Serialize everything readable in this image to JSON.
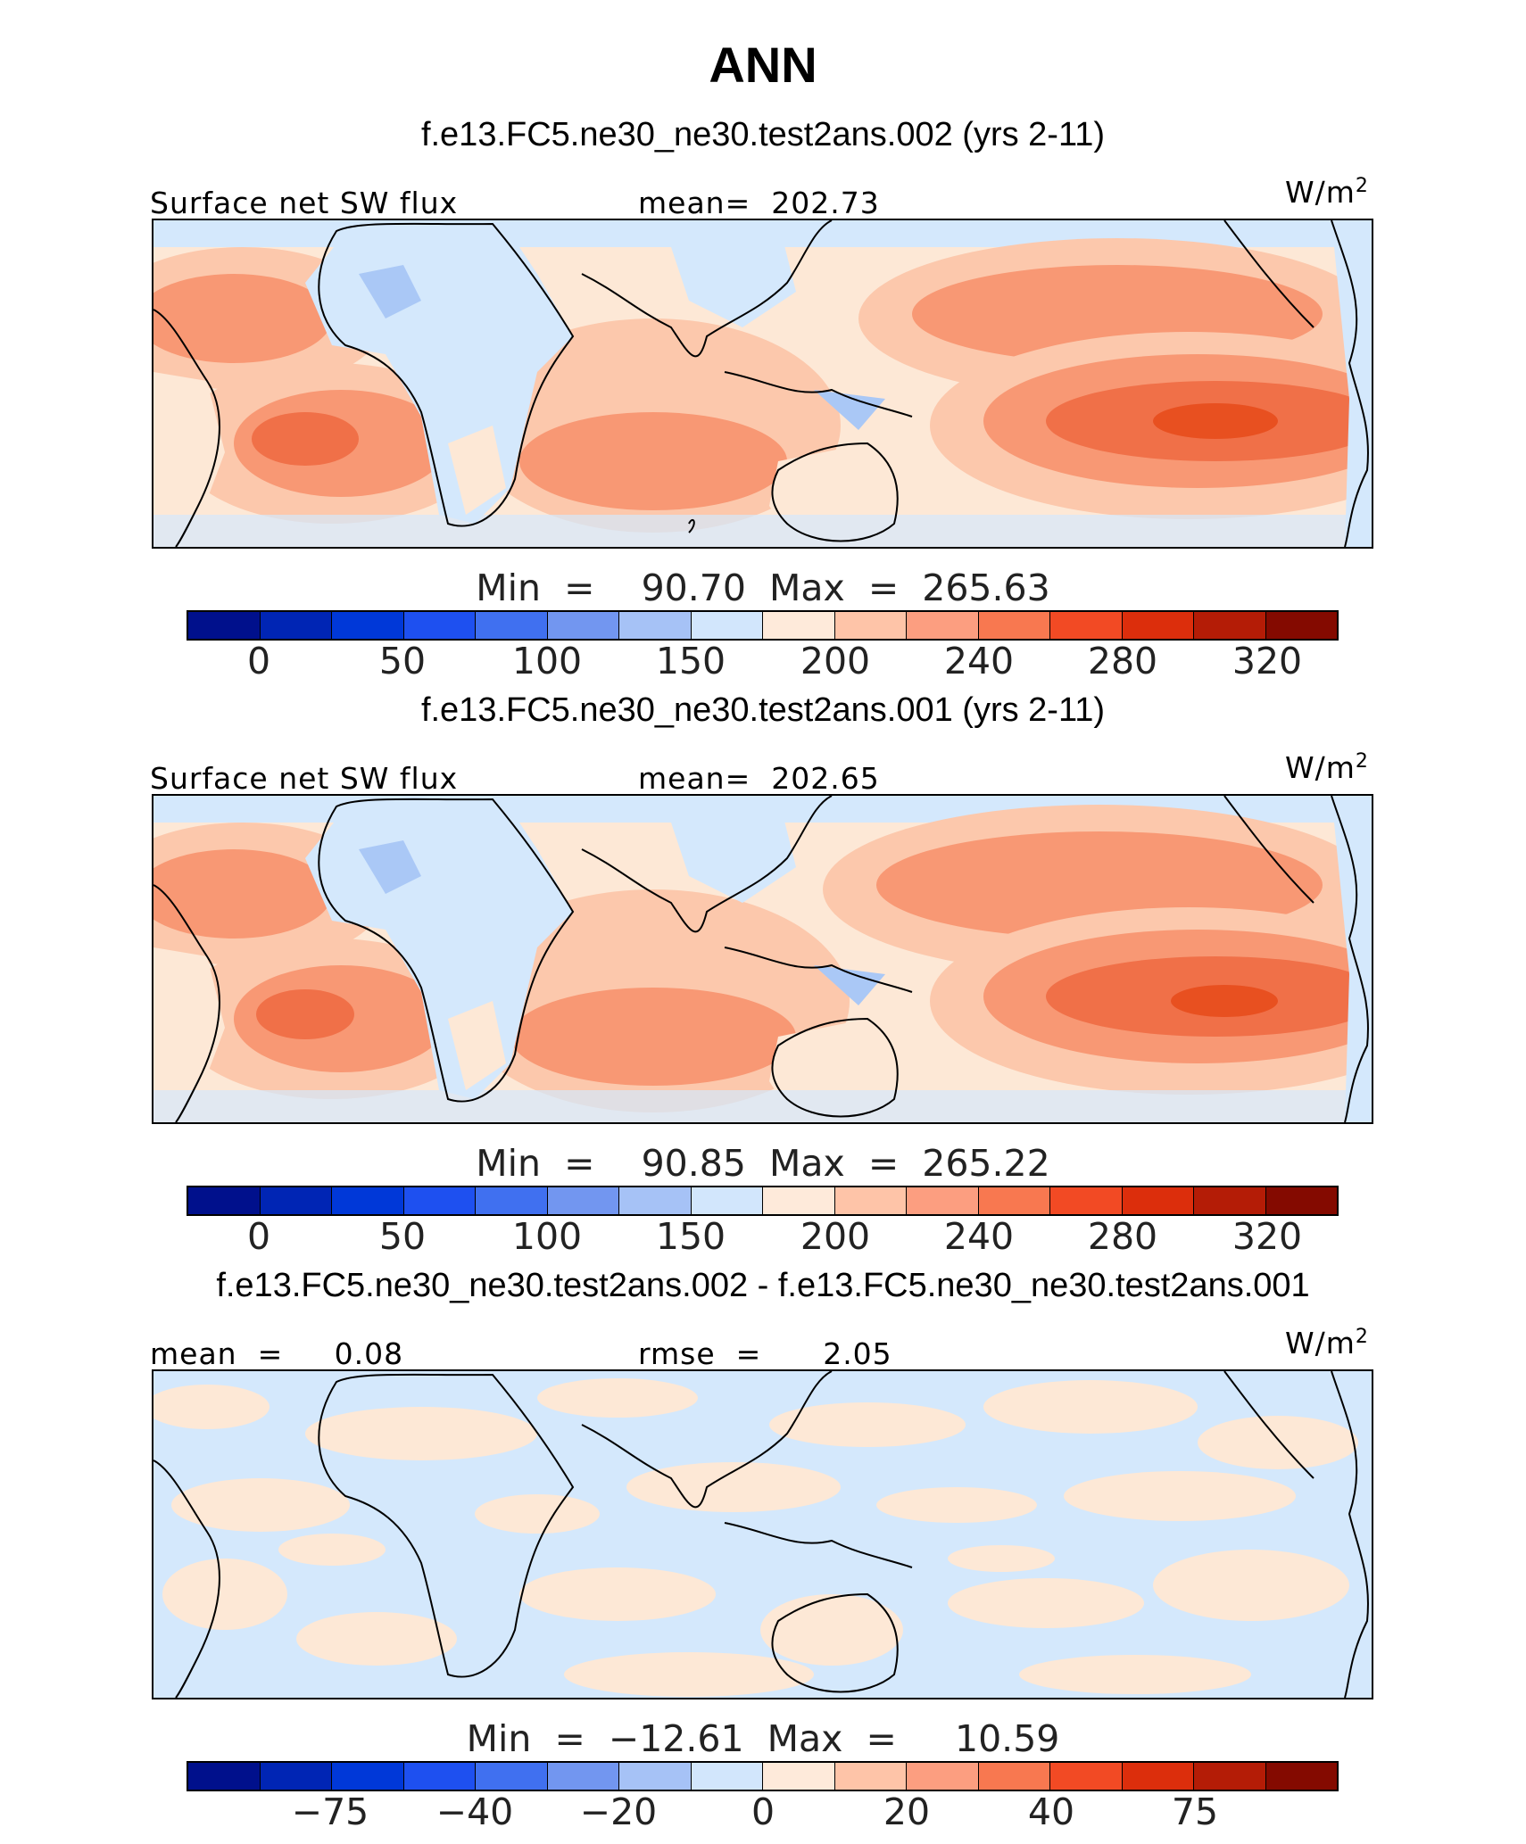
{
  "title": "ANN",
  "colors": {
    "palette": [
      "#00108c",
      "#0025b4",
      "#0038d8",
      "#1e50f0",
      "#4070f0",
      "#7296f0",
      "#a6c2f6",
      "#d2e6fc",
      "#feeada",
      "#fec4a8",
      "#fc9e80",
      "#f87850",
      "#f24a24",
      "#dc2e0c",
      "#b41c06",
      "#840a00"
    ],
    "ocean_warm": "#fcc8ac",
    "ocean_hot": "#f89874",
    "ocean_peak": "#f07048",
    "ocean_core": "#e85020",
    "neutral": "#fde8d6",
    "cool": "#d4e8fc",
    "cooler": "#aac8f6"
  },
  "panels": [
    {
      "run_title": "f.e13.FC5.ne30_ne30.test2ans.002 (yrs 2-11)",
      "left_label": "Surface net SW flux",
      "center_label": "mean=  202.73",
      "units": "W/m",
      "units_sup": "2",
      "stats": "Min  =    90.70  Max  =  265.63",
      "ticks": [
        "0",
        "50",
        "100",
        "150",
        "200",
        "240",
        "280",
        "320"
      ]
    },
    {
      "run_title": "f.e13.FC5.ne30_ne30.test2ans.001 (yrs 2-11)",
      "left_label": "Surface net SW flux",
      "center_label": "mean=  202.65",
      "units": "W/m",
      "units_sup": "2",
      "stats": "Min  =    90.85  Max  =  265.22",
      "ticks": [
        "0",
        "50",
        "100",
        "150",
        "200",
        "240",
        "280",
        "320"
      ]
    },
    {
      "run_title": "f.e13.FC5.ne30_ne30.test2ans.002 - f.e13.FC5.ne30_ne30.test2ans.001",
      "left_label": "mean  =     0.08",
      "center_label": "rmse  =      2.05",
      "units": "W/m",
      "units_sup": "2",
      "stats": "Min  =  −12.61  Max  =     10.59",
      "ticks": [
        "−75",
        "−40",
        "−20",
        "0",
        "20",
        "40",
        "75"
      ]
    }
  ]
}
